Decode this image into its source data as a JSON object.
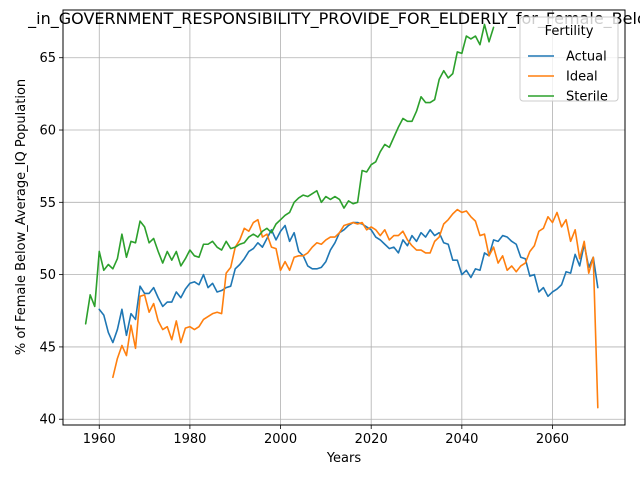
{
  "chart_data": {
    "type": "line",
    "title": "_in_GOVERNMENT_RESPONSIBILITY_PROVIDE_FOR_ELDERLY_for_Female_Below",
    "xlabel": "Years",
    "ylabel": "% of Female Below_Average_IQ Population",
    "xlim": [
      1952,
      2076
    ],
    "ylim": [
      39.6,
      68.3
    ],
    "xticks": [
      1960,
      1980,
      2000,
      2020,
      2040,
      2060
    ],
    "yticks": [
      40,
      45,
      50,
      55,
      60,
      65
    ],
    "grid": true,
    "legend": {
      "title": "Fertility",
      "position": "top-right"
    },
    "series": [
      {
        "name": "Actual",
        "color": "#1f77b4",
        "x": [
          1960,
          1961,
          1962,
          1963,
          1964,
          1965,
          1966,
          1967,
          1968,
          1969,
          1970,
          1971,
          1972,
          1973,
          1974,
          1975,
          1976,
          1977,
          1978,
          1979,
          1980,
          1981,
          1982,
          1983,
          1984,
          1985,
          1986,
          1987,
          1988,
          1989,
          1990,
          1991,
          1992,
          1993,
          1994,
          1995,
          1996,
          1997,
          1998,
          1999,
          2000,
          2001,
          2002,
          2003,
          2004,
          2005,
          2006,
          2007,
          2008,
          2009,
          2010,
          2011,
          2012,
          2013,
          2014,
          2015,
          2016,
          2017,
          2018,
          2019,
          2020,
          2021,
          2022,
          2023,
          2024,
          2025,
          2026,
          2027,
          2028,
          2029,
          2030,
          2031,
          2032,
          2033,
          2034,
          2035,
          2036,
          2037,
          2038,
          2039,
          2040,
          2041,
          2042,
          2043,
          2044,
          2045,
          2046,
          2047,
          2048,
          2049,
          2050,
          2051,
          2052,
          2053,
          2054,
          2055,
          2056,
          2057,
          2058,
          2059,
          2060,
          2061,
          2062,
          2063,
          2064,
          2065,
          2066,
          2067,
          2068,
          2069,
          2070
        ],
        "values": [
          47.6,
          47.2,
          46.0,
          45.3,
          46.2,
          47.6,
          45.8,
          47.3,
          46.9,
          49.2,
          48.7,
          48.7,
          49.1,
          48.4,
          47.8,
          48.1,
          48.1,
          48.8,
          48.4,
          49.0,
          49.4,
          49.5,
          49.3,
          50.0,
          49.1,
          49.4,
          48.8,
          48.9,
          49.1,
          49.2,
          50.4,
          50.7,
          51.1,
          51.6,
          51.8,
          52.2,
          51.9,
          52.5,
          53.1,
          52.4,
          53.0,
          53.4,
          52.3,
          52.9,
          51.6,
          51.3,
          50.6,
          50.4,
          50.4,
          50.5,
          50.9,
          51.7,
          52.2,
          52.9,
          53.1,
          53.4,
          53.6,
          53.6,
          53.5,
          53.3,
          53.1,
          52.6,
          52.4,
          52.1,
          51.8,
          51.9,
          51.5,
          52.4,
          52.0,
          52.7,
          52.3,
          52.9,
          52.6,
          53.1,
          52.7,
          52.9,
          52.2,
          52.1,
          51.0,
          51.0,
          50.0,
          50.3,
          49.8,
          50.4,
          50.3,
          51.5,
          51.3,
          52.4,
          52.3,
          52.7,
          52.6,
          52.3,
          52.1,
          51.2,
          51.1,
          49.9,
          50.0,
          48.8,
          49.1,
          48.5,
          48.8,
          49.0,
          49.3,
          50.2,
          50.1,
          51.4,
          50.6,
          52.1,
          50.5,
          51.2,
          49.1
        ]
      },
      {
        "name": "Ideal",
        "color": "#ff7f0e",
        "x": [
          1963,
          1964,
          1965,
          1966,
          1967,
          1968,
          1969,
          1970,
          1971,
          1972,
          1973,
          1974,
          1975,
          1976,
          1977,
          1978,
          1979,
          1980,
          1981,
          1982,
          1983,
          1984,
          1985,
          1986,
          1987,
          1988,
          1989,
          1990,
          1991,
          1992,
          1993,
          1994,
          1995,
          1996,
          1997,
          1998,
          1999,
          2000,
          2001,
          2002,
          2003,
          2004,
          2005,
          2006,
          2007,
          2008,
          2009,
          2010,
          2011,
          2012,
          2013,
          2014,
          2015,
          2016,
          2017,
          2018,
          2019,
          2020,
          2021,
          2022,
          2023,
          2024,
          2025,
          2026,
          2027,
          2028,
          2029,
          2030,
          2031,
          2032,
          2033,
          2034,
          2035,
          2036,
          2037,
          2038,
          2039,
          2040,
          2041,
          2042,
          2043,
          2044,
          2045,
          2046,
          2047,
          2048,
          2049,
          2050,
          2051,
          2052,
          2053,
          2054,
          2055,
          2056,
          2057,
          2058,
          2059,
          2060,
          2061,
          2062,
          2063,
          2064,
          2065,
          2066,
          2067,
          2068,
          2069,
          2070
        ],
        "values": [
          42.9,
          44.2,
          45.1,
          44.4,
          46.5,
          44.9,
          48.5,
          48.6,
          47.4,
          48.0,
          46.8,
          46.2,
          46.4,
          45.5,
          46.8,
          45.3,
          46.3,
          46.4,
          46.2,
          46.4,
          46.9,
          47.1,
          47.3,
          47.4,
          47.3,
          50.1,
          50.5,
          51.9,
          52.4,
          53.2,
          53.0,
          53.6,
          53.8,
          52.6,
          52.8,
          51.9,
          51.8,
          50.3,
          50.9,
          50.3,
          51.2,
          51.3,
          51.3,
          51.5,
          51.9,
          52.2,
          52.1,
          52.4,
          52.6,
          52.6,
          52.9,
          53.4,
          53.5,
          53.6,
          53.5,
          53.6,
          53.1,
          53.3,
          53.1,
          52.7,
          53.1,
          52.4,
          52.7,
          52.7,
          53.0,
          52.4,
          52.0,
          51.7,
          51.7,
          51.5,
          51.5,
          52.3,
          52.6,
          53.5,
          53.8,
          54.2,
          54.5,
          54.3,
          54.4,
          54.0,
          53.7,
          52.7,
          52.8,
          51.3,
          51.9,
          50.8,
          51.3,
          50.3,
          50.6,
          50.2,
          50.6,
          50.8,
          51.6,
          52.0,
          53.0,
          53.2,
          54.0,
          53.6,
          54.3,
          53.3,
          53.8,
          52.3,
          53.1,
          51.1,
          52.3,
          50.1,
          51.2,
          40.8
        ]
      },
      {
        "name": "Sterile",
        "color": "#2ca02c",
        "x": [
          1957,
          1958,
          1959,
          1960,
          1961,
          1962,
          1963,
          1964,
          1965,
          1966,
          1967,
          1968,
          1969,
          1970,
          1971,
          1972,
          1973,
          1974,
          1975,
          1976,
          1977,
          1978,
          1979,
          1980,
          1981,
          1982,
          1983,
          1984,
          1985,
          1986,
          1987,
          1988,
          1989,
          1990,
          1991,
          1992,
          1993,
          1994,
          1995,
          1996,
          1997,
          1998,
          1999,
          2000,
          2001,
          2002,
          2003,
          2004,
          2005,
          2006,
          2007,
          2008,
          2009,
          2010,
          2011,
          2012,
          2013,
          2014,
          2015,
          2016,
          2017,
          2018,
          2019,
          2020,
          2021,
          2022,
          2023,
          2024,
          2025,
          2026,
          2027,
          2028,
          2029,
          2030,
          2031,
          2032,
          2033,
          2034,
          2035,
          2036,
          2037,
          2038,
          2039,
          2040,
          2041,
          2042,
          2043,
          2044,
          2045,
          2046,
          2047
        ],
        "values": [
          46.6,
          48.6,
          47.8,
          51.6,
          50.3,
          50.7,
          50.4,
          51.1,
          52.8,
          51.2,
          52.3,
          52.2,
          53.7,
          53.3,
          52.2,
          52.5,
          51.6,
          50.8,
          51.6,
          51.0,
          51.6,
          50.6,
          51.1,
          51.7,
          51.3,
          51.2,
          52.1,
          52.1,
          52.3,
          51.9,
          51.7,
          52.3,
          51.8,
          51.9,
          52.1,
          52.2,
          52.6,
          52.8,
          52.6,
          53.0,
          53.2,
          52.9,
          53.5,
          53.8,
          54.1,
          54.3,
          55.0,
          55.3,
          55.5,
          55.4,
          55.6,
          55.8,
          55.0,
          55.4,
          55.2,
          55.4,
          55.2,
          54.6,
          55.1,
          54.9,
          55.0,
          57.2,
          57.1,
          57.6,
          57.8,
          58.5,
          59.0,
          58.8,
          59.5,
          60.2,
          60.8,
          60.6,
          60.6,
          61.3,
          62.3,
          61.9,
          61.9,
          62.1,
          63.5,
          64.1,
          63.6,
          63.9,
          65.4,
          65.3,
          66.5,
          66.3,
          66.5,
          65.9,
          67.3,
          66.1,
          67.1
        ]
      }
    ]
  }
}
